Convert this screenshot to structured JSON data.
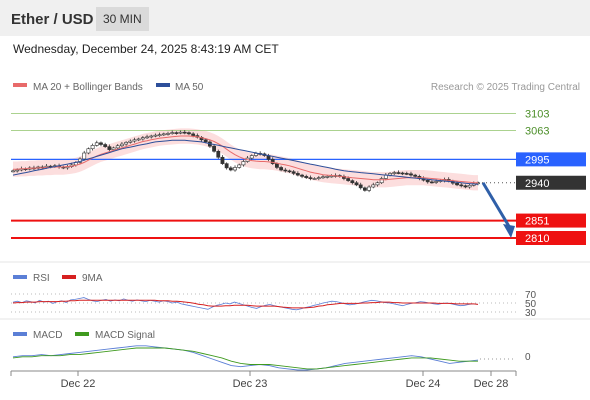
{
  "header": {
    "pair": "Ether / USD",
    "timeframe": "30 MIN"
  },
  "datetime": "Wednesday, December 24, 2025 8:43:19 AM CET",
  "legend": {
    "ma20": "MA 20 + Bollinger Bands",
    "ma50": "MA 50",
    "credit": "Research © 2025 Trading Central"
  },
  "colors": {
    "ma20": "#e86a6a",
    "ma50": "#2d4f9a",
    "bands": "#fbd6d6",
    "resistance": "#8fc36a",
    "pivot": "#2962ff",
    "support": "#ee1111",
    "current": "#333333",
    "arrow": "#2f5fa8",
    "rsi": "#5b7fd6",
    "rsi_ma": "#d62020",
    "macd": "#5b7fd6",
    "macd_signal": "#3f9a1f"
  },
  "chart_data": [
    {
      "type": "candlestick",
      "x_ticks": [
        "Dec 22",
        "Dec 23",
        "Dec 24",
        "Dec 28"
      ],
      "ylim": [
        2770,
        3130
      ],
      "levels": [
        {
          "value": 3103,
          "label": "3103",
          "kind": "resistance"
        },
        {
          "value": 3063,
          "label": "3063",
          "kind": "resistance"
        },
        {
          "value": 2995,
          "label": "2995",
          "kind": "pivot"
        },
        {
          "value": 2940,
          "label": "2940",
          "kind": "current"
        },
        {
          "value": 2851,
          "label": "2851",
          "kind": "support"
        },
        {
          "value": 2810,
          "label": "2810",
          "kind": "support"
        }
      ],
      "closes": [
        2968,
        2970,
        2973,
        2972,
        2975,
        2974,
        2977,
        2976,
        2979,
        2978,
        2980,
        2977,
        2975,
        2978,
        2982,
        2988,
        2996,
        3010,
        3020,
        3028,
        3034,
        3030,
        3025,
        3018,
        3022,
        3027,
        3031,
        3035,
        3038,
        3041,
        3043,
        3046,
        3048,
        3050,
        3052,
        3053,
        3055,
        3056,
        3058,
        3057,
        3059,
        3058,
        3055,
        3051,
        3047,
        3041,
        3036,
        3026,
        3014,
        3000,
        2985,
        2975,
        2970,
        2976,
        2982,
        2990,
        2998,
        3004,
        3009,
        3008,
        3004,
        2995,
        2985,
        2976,
        2970,
        2968,
        2966,
        2962,
        2958,
        2955,
        2952,
        2950,
        2950,
        2952,
        2954,
        2955,
        2956,
        2957,
        2955,
        2950,
        2945,
        2940,
        2935,
        2928,
        2922,
        2930,
        2935,
        2940,
        2950,
        2958,
        2962,
        2964,
        2963,
        2962,
        2961,
        2958,
        2955,
        2950,
        2946,
        2942,
        2941,
        2943,
        2945,
        2948,
        2944,
        2939,
        2935,
        2933,
        2930,
        2934,
        2938,
        2940
      ],
      "ma20": [
        2972,
        2972,
        2973,
        2973,
        2974,
        2974,
        2975,
        2975,
        2976,
        2976,
        2977,
        2977,
        2977,
        2978,
        2979,
        2981,
        2984,
        2988,
        2993,
        2998,
        3003,
        3007,
        3010,
        3013,
        3016,
        3019,
        3022,
        3025,
        3028,
        3031,
        3034,
        3037,
        3039,
        3041,
        3043,
        3045,
        3046,
        3047,
        3048,
        3049,
        3050,
        3050,
        3050,
        3049,
        3048,
        3046,
        3044,
        3041,
        3037,
        3032,
        3026,
        3019,
        3012,
        3006,
        3001,
        2997,
        2994,
        2992,
        2991,
        2990,
        2990,
        2989,
        2988,
        2986,
        2984,
        2982,
        2980,
        2977,
        2974,
        2971,
        2968,
        2965,
        2963,
        2961,
        2959,
        2958,
        2957,
        2956,
        2955,
        2954,
        2953,
        2952,
        2951,
        2950,
        2949,
        2948,
        2947,
        2947,
        2947,
        2947,
        2948,
        2949,
        2950,
        2951,
        2952,
        2952,
        2952,
        2952,
        2952,
        2951,
        2950,
        2949,
        2948,
        2947,
        2946,
        2945,
        2944,
        2943,
        2942,
        2941,
        2940,
        2940
      ],
      "ma50": [
        2958,
        2960,
        2962,
        2964,
        2966,
        2968,
        2970,
        2972,
        2974,
        2976,
        2978,
        2980,
        2982,
        2984,
        2986,
        2988,
        2990,
        2993,
        2996,
        2999,
        3002,
        3005,
        3008,
        3011,
        3014,
        3017,
        3020,
        3022,
        3024,
        3026,
        3028,
        3030,
        3032,
        3034,
        3036,
        3037,
        3038,
        3039,
        3040,
        3040,
        3040,
        3040,
        3039,
        3038,
        3037,
        3036,
        3034,
        3032,
        3030,
        3028,
        3026,
        3024,
        3022,
        3020,
        3018,
        3016,
        3014,
        3012,
        3010,
        3008,
        3006,
        3004,
        3002,
        3000,
        2998,
        2996,
        2994,
        2992,
        2990,
        2988,
        2986,
        2984,
        2982,
        2980,
        2978,
        2976,
        2974,
        2972,
        2970,
        2968,
        2967,
        2966,
        2965,
        2964,
        2963,
        2962,
        2961,
        2960,
        2959,
        2958,
        2957,
        2956,
        2955,
        2954,
        2953,
        2952,
        2951,
        2950,
        2949,
        2948,
        2947,
        2946,
        2945,
        2944,
        2943,
        2942,
        2941,
        2940,
        2939,
        2938,
        2937,
        2936
      ]
    },
    {
      "type": "line",
      "name": "RSI",
      "labels": [
        "RSI",
        "9MA"
      ],
      "ticks": [
        70,
        50,
        30
      ],
      "rsi": [
        52,
        54,
        51,
        55,
        53,
        50,
        56,
        52,
        54,
        49,
        53,
        55,
        51,
        57,
        58,
        60,
        62,
        58,
        55,
        53,
        56,
        58,
        54,
        57,
        55,
        59,
        56,
        54,
        57,
        55,
        53,
        56,
        54,
        52,
        55,
        53,
        50,
        52,
        48,
        46,
        44,
        42,
        40,
        38,
        36,
        41,
        45,
        47,
        50,
        48,
        52,
        49,
        46,
        43,
        40,
        38,
        42,
        45,
        47,
        44,
        42,
        40,
        38,
        36,
        35,
        37,
        40,
        42,
        45,
        47,
        50,
        52,
        54,
        53,
        51,
        48,
        46,
        47,
        49,
        52,
        54,
        56,
        55,
        53,
        51,
        50,
        48,
        46,
        44,
        47,
        49,
        51,
        53,
        52,
        50,
        48,
        47,
        49,
        50,
        48,
        46,
        44,
        45,
        47,
        48,
        47
      ],
      "rsi_ma": [
        50,
        51,
        51,
        52,
        52,
        52,
        53,
        53,
        53,
        53,
        53,
        54,
        54,
        55,
        55,
        56,
        56,
        56,
        56,
        56,
        56,
        56,
        56,
        56,
        56,
        56,
        56,
        56,
        56,
        56,
        56,
        56,
        56,
        55,
        55,
        55,
        54,
        54,
        53,
        52,
        51,
        49,
        47,
        46,
        44,
        43,
        43,
        43,
        44,
        44,
        45,
        45,
        45,
        45,
        44,
        43,
        43,
        43,
        43,
        43,
        42,
        41,
        40,
        39,
        39,
        39,
        39,
        40,
        41,
        43,
        44,
        46,
        47,
        48,
        49,
        49,
        49,
        49,
        49,
        50,
        50,
        51,
        51,
        52,
        52,
        52,
        51,
        51,
        50,
        50,
        50,
        50,
        50,
        50,
        50,
        50,
        49,
        49,
        49,
        49,
        48,
        48,
        48,
        48,
        48,
        47
      ]
    },
    {
      "type": "line",
      "name": "MACD",
      "labels": [
        "MACD",
        "MACD Signal"
      ],
      "ticks": [
        0
      ],
      "macd": [
        2,
        3,
        3,
        4,
        3,
        4,
        5,
        6,
        7,
        8,
        9,
        10,
        11,
        12,
        12,
        11,
        10,
        9,
        8,
        6,
        3,
        0,
        -3,
        -6,
        -7,
        -6,
        -5,
        -6,
        -8,
        -9,
        -10,
        -10,
        -9,
        -8,
        -6,
        -4,
        -3,
        -2,
        -1,
        0,
        1,
        2,
        3,
        2,
        0,
        -2,
        -4,
        -3,
        -2,
        -1
      ],
      "signal": [
        1,
        2,
        2,
        3,
        3,
        3,
        4,
        4,
        5,
        6,
        7,
        8,
        9,
        10,
        10,
        10,
        10,
        9,
        8,
        7,
        5,
        3,
        1,
        -2,
        -4,
        -5,
        -5,
        -5,
        -6,
        -7,
        -8,
        -9,
        -9,
        -8,
        -7,
        -6,
        -5,
        -4,
        -3,
        -2,
        -1,
        0,
        1,
        1,
        1,
        0,
        -1,
        -2,
        -2,
        -2
      ]
    }
  ]
}
